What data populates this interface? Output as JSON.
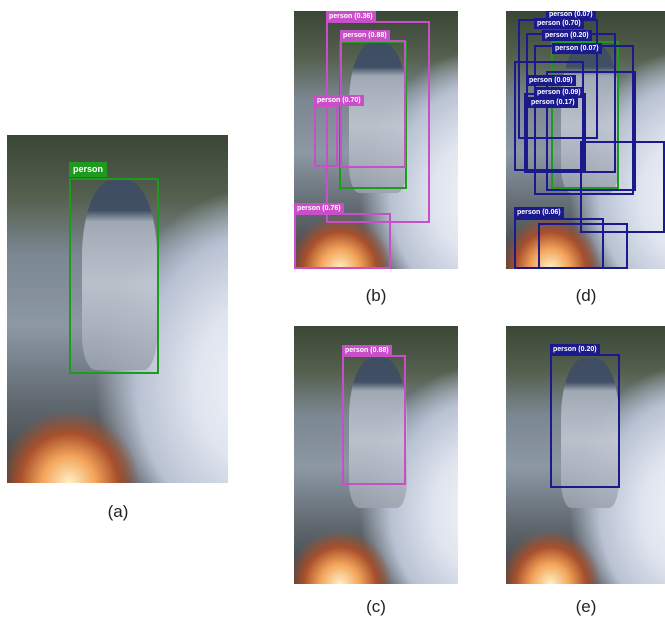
{
  "captions": {
    "a": "(a)",
    "b": "(b)",
    "c": "(c)",
    "d": "(d)",
    "e": "(e)"
  },
  "panel_a": {
    "label": "person"
  },
  "panel_b": {
    "labels": [
      "person (0.36)",
      "person (0.88)",
      "person (0.70)",
      "person (0.76)"
    ]
  },
  "panel_c": {
    "label": "person (0.88)"
  },
  "panel_d": {
    "labels": [
      "person (0.07)",
      "person (0.70)",
      "person (0.20)",
      "person (0.07)",
      "person (0.09)",
      "person (0.09)",
      "person (0.17)",
      "person (0.06)"
    ]
  },
  "panel_e": {
    "label": "person (0.20)"
  },
  "colors": {
    "ground_truth": "#1e9a1e",
    "method_b": "#c94fc9",
    "method_d": "#1a1a8c"
  }
}
